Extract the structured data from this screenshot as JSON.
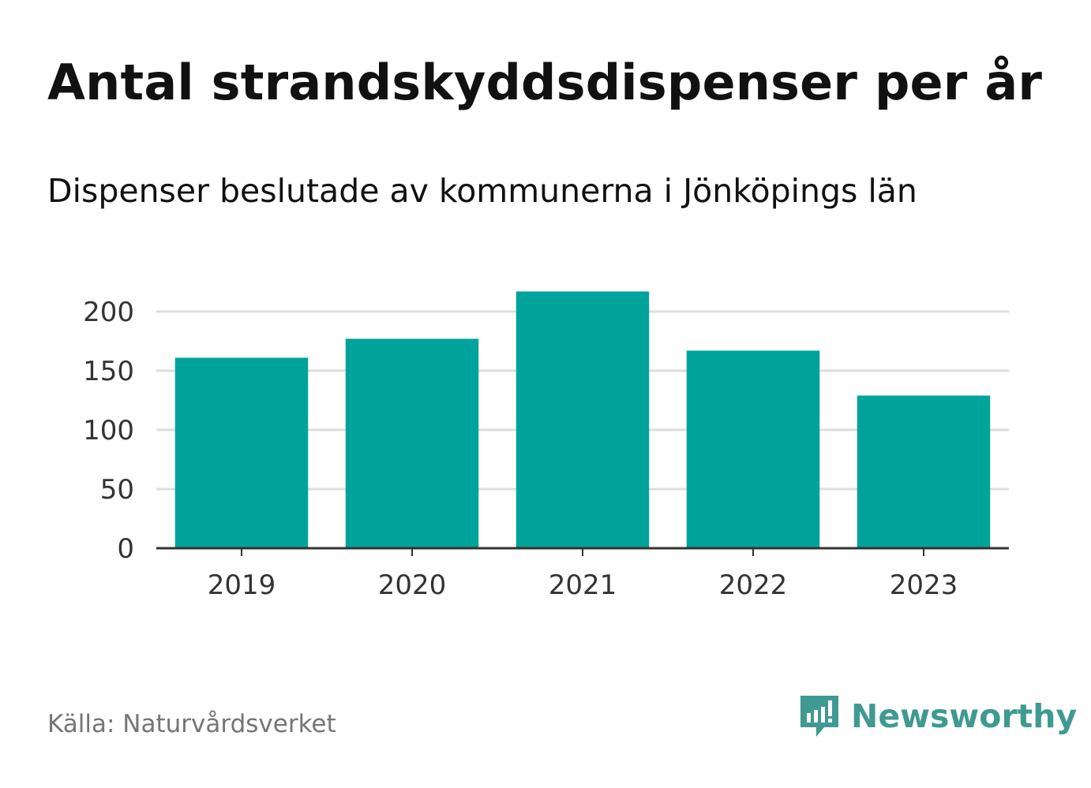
{
  "chart_data": {
    "type": "bar",
    "title": "Antal strandskyddsdispenser per år",
    "subtitle": "Dispenser beslutade av kommunerna i Jönköpings län",
    "categories": [
      "2019",
      "2020",
      "2021",
      "2022",
      "2023"
    ],
    "values": [
      161,
      177,
      217,
      167,
      129
    ],
    "yticks": [
      "0",
      "50",
      "100",
      "150",
      "200"
    ],
    "ylim": [
      0,
      200
    ],
    "xlabel": "",
    "ylabel": "",
    "grid": true,
    "bar_color": "#00a39a"
  },
  "footer": {
    "source": "Källa: Naturvårdsverket",
    "brand": "Newsworthy",
    "brand_icon": "newsworthy-logo-icon",
    "brand_color": "#3f9a91"
  }
}
